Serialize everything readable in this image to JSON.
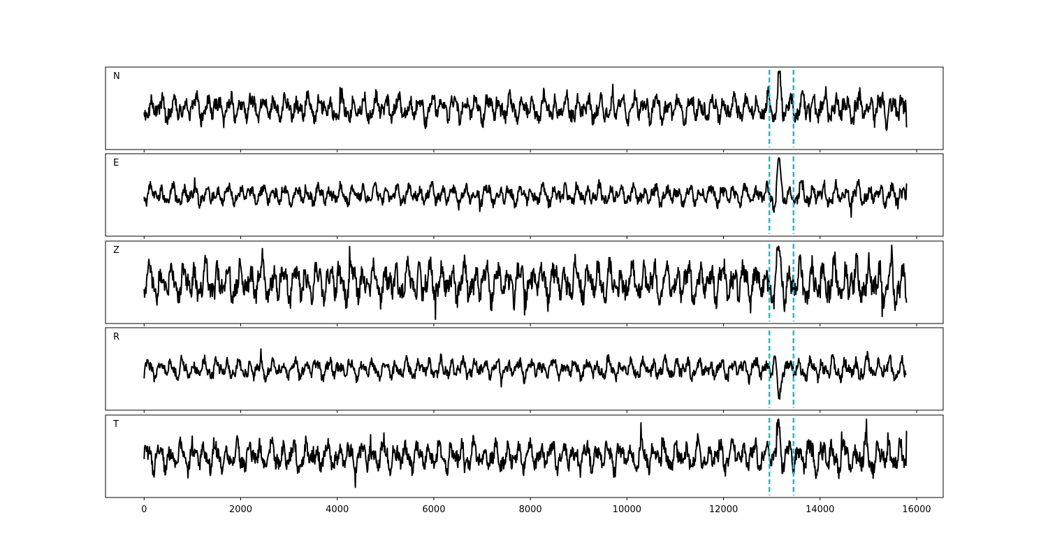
{
  "chart_data": {
    "type": "line",
    "title": "",
    "xlabel": "",
    "ylabel": "",
    "xlim": [
      -800,
      16550
    ],
    "x_ticks": [
      0,
      2000,
      4000,
      6000,
      8000,
      10000,
      12000,
      14000,
      16000
    ],
    "x_tick_labels": [
      "0",
      "2000",
      "4000",
      "6000",
      "8000",
      "10000",
      "12000",
      "14000",
      "16000"
    ],
    "n_samples": 15800,
    "markers": [
      12950,
      13450
    ],
    "marker_color": "#17becf",
    "trace_color": "#000000",
    "grid": false,
    "legend": "none",
    "series": [
      {
        "name": "N",
        "noise_amplitude": 0.55,
        "event_peak": 1.25,
        "end_value": -0.75
      },
      {
        "name": "E",
        "noise_amplitude": 0.4,
        "event_peak": 1.3,
        "end_value": 0.45
      },
      {
        "name": "Z",
        "noise_amplitude": 0.8,
        "event_peak": 0.9,
        "end_value": -0.8
      },
      {
        "name": "R",
        "noise_amplitude": 0.4,
        "event_peak": -1.25,
        "end_value": -0.2
      },
      {
        "name": "T",
        "noise_amplitude": 0.6,
        "event_peak": 1.3,
        "end_value": 1.0
      }
    ]
  }
}
